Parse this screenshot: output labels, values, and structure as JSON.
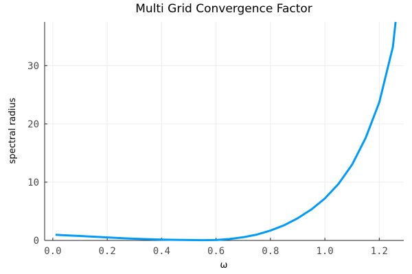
{
  "chart_data": {
    "type": "line",
    "title": "Multi Grid Convergence Factor",
    "xlabel": "ω",
    "ylabel": "spectral radius",
    "xlim": [
      -0.03,
      1.29
    ],
    "ylim": [
      0,
      37.5
    ],
    "xticks": [
      0.0,
      0.2,
      0.4,
      0.6,
      0.8,
      1.0,
      1.2
    ],
    "xtick_labels": [
      "0.0",
      "0.2",
      "0.4",
      "0.6",
      "0.8",
      "1.0",
      "1.2"
    ],
    "yticks": [
      0,
      10,
      20,
      30
    ],
    "ytick_labels": [
      "0",
      "10",
      "20",
      "30"
    ],
    "grid": true,
    "legend": "none",
    "series": [
      {
        "color": "#009AFA",
        "x": [
          0.01,
          0.05,
          0.1,
          0.15,
          0.2,
          0.25,
          0.3,
          0.35,
          0.4,
          0.45,
          0.5,
          0.55,
          0.6,
          0.65,
          0.7,
          0.75,
          0.8,
          0.85,
          0.9,
          0.95,
          1.0,
          1.05,
          1.1,
          1.15,
          1.2,
          1.25,
          1.26
        ],
        "y": [
          0.97,
          0.87,
          0.76,
          0.64,
          0.51,
          0.4,
          0.3,
          0.22,
          0.15,
          0.1,
          0.07,
          0.05,
          0.08,
          0.25,
          0.55,
          1.0,
          1.7,
          2.6,
          3.8,
          5.3,
          7.2,
          9.7,
          13.0,
          17.6,
          23.7,
          33.2,
          37.5
        ]
      }
    ]
  }
}
